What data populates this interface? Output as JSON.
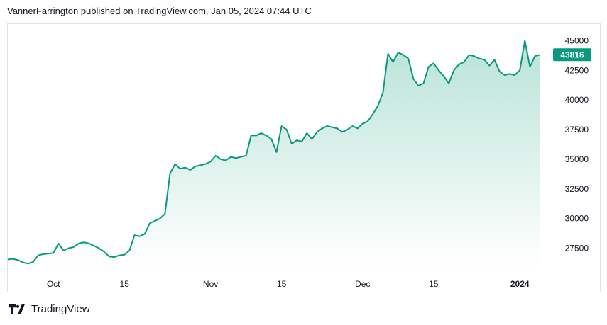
{
  "header": {
    "text": "VannerFarrington published on TradingView.com, Jan 05, 2024 07:44 UTC"
  },
  "brand": {
    "name": "TradingView",
    "logo_icon": "tradingview-logo-icon"
  },
  "colors": {
    "line": "#089981",
    "area_top": "#b9e3d7",
    "area_bottom": "#ffffff",
    "badge": "#089981",
    "grid_border": "#e0e3eb"
  },
  "chart_data": {
    "type": "area",
    "title": "",
    "xlabel": "",
    "ylabel": "",
    "grid": false,
    "ylim": [
      25800,
      46400
    ],
    "xlim": [
      "2023-09-22",
      "2024-01-07"
    ],
    "y_ticks": [
      27500,
      30000,
      32500,
      35000,
      37500,
      40000,
      42500,
      45000
    ],
    "x_ticks": [
      {
        "label": "Oct",
        "date": "2023-10-01",
        "bold": false
      },
      {
        "label": "15",
        "date": "2023-10-15",
        "bold": false
      },
      {
        "label": "Nov",
        "date": "2023-11-01",
        "bold": false
      },
      {
        "label": "15",
        "date": "2023-11-15",
        "bold": false
      },
      {
        "label": "Dec",
        "date": "2023-12-01",
        "bold": false
      },
      {
        "label": "15",
        "date": "2023-12-15",
        "bold": false
      },
      {
        "label": "2024",
        "date": "2024-01-01",
        "bold": true
      }
    ],
    "last_price": "43816",
    "series": [
      {
        "x": [
          "2023-09-22",
          "2023-09-23",
          "2023-09-24",
          "2023-09-25",
          "2023-09-26",
          "2023-09-27",
          "2023-09-28",
          "2023-09-29",
          "2023-09-30",
          "2023-10-01",
          "2023-10-02",
          "2023-10-03",
          "2023-10-04",
          "2023-10-05",
          "2023-10-06",
          "2023-10-07",
          "2023-10-08",
          "2023-10-09",
          "2023-10-10",
          "2023-10-11",
          "2023-10-12",
          "2023-10-13",
          "2023-10-14",
          "2023-10-15",
          "2023-10-16",
          "2023-10-17",
          "2023-10-18",
          "2023-10-19",
          "2023-10-20",
          "2023-10-21",
          "2023-10-22",
          "2023-10-23",
          "2023-10-24",
          "2023-10-25",
          "2023-10-26",
          "2023-10-27",
          "2023-10-28",
          "2023-10-29",
          "2023-10-30",
          "2023-10-31",
          "2023-11-01",
          "2023-11-02",
          "2023-11-03",
          "2023-11-04",
          "2023-11-05",
          "2023-11-06",
          "2023-11-07",
          "2023-11-08",
          "2023-11-09",
          "2023-11-10",
          "2023-11-11",
          "2023-11-12",
          "2023-11-13",
          "2023-11-14",
          "2023-11-15",
          "2023-11-16",
          "2023-11-17",
          "2023-11-18",
          "2023-11-19",
          "2023-11-20",
          "2023-11-21",
          "2023-11-22",
          "2023-11-23",
          "2023-11-24",
          "2023-11-25",
          "2023-11-26",
          "2023-11-27",
          "2023-11-28",
          "2023-11-29",
          "2023-11-30",
          "2023-12-01",
          "2023-12-02",
          "2023-12-03",
          "2023-12-04",
          "2023-12-05",
          "2023-12-06",
          "2023-12-07",
          "2023-12-08",
          "2023-12-09",
          "2023-12-10",
          "2023-12-11",
          "2023-12-12",
          "2023-12-13",
          "2023-12-14",
          "2023-12-15",
          "2023-12-16",
          "2023-12-17",
          "2023-12-18",
          "2023-12-19",
          "2023-12-20",
          "2023-12-21",
          "2023-12-22",
          "2023-12-23",
          "2023-12-24",
          "2023-12-25",
          "2023-12-26",
          "2023-12-27",
          "2023-12-28",
          "2023-12-29",
          "2023-12-30",
          "2023-12-31",
          "2024-01-01",
          "2024-01-02",
          "2024-01-03",
          "2024-01-04",
          "2024-01-05"
        ],
        "values": [
          26550,
          26600,
          26500,
          26300,
          26200,
          26350,
          26900,
          27000,
          27050,
          27100,
          27900,
          27300,
          27500,
          27600,
          27900,
          28000,
          27900,
          27700,
          27500,
          27200,
          26800,
          26750,
          26900,
          26950,
          27300,
          28600,
          28500,
          28700,
          29600,
          29800,
          30000,
          30400,
          33800,
          34600,
          34200,
          34300,
          34100,
          34400,
          34500,
          34600,
          34800,
          35300,
          35000,
          34900,
          35200,
          35100,
          35200,
          35300,
          37000,
          37000,
          37200,
          37000,
          36700,
          35600,
          37800,
          37500,
          36300,
          36600,
          36500,
          37200,
          36700,
          37300,
          37600,
          37800,
          37700,
          37600,
          37300,
          37500,
          37800,
          37600,
          38000,
          38200,
          38800,
          39500,
          40600,
          43900,
          43200,
          44000,
          43800,
          43500,
          41800,
          41200,
          41400,
          42800,
          43100,
          42500,
          42000,
          41400,
          42500,
          43000,
          43200,
          43800,
          43700,
          43500,
          43400,
          42900,
          43400,
          42400,
          42100,
          42200,
          42100,
          42500,
          45000,
          42800,
          43700,
          43816
        ]
      }
    ]
  }
}
